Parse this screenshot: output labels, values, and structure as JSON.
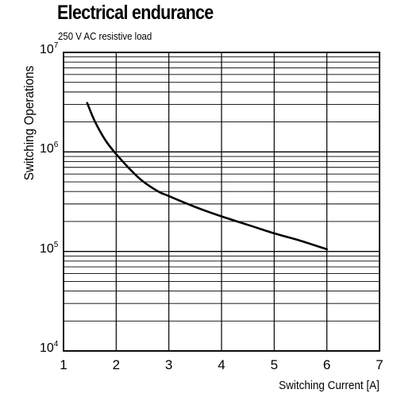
{
  "chart_data": {
    "type": "line",
    "title": "Electrical endurance",
    "subtitle": "250 V AC resistive load",
    "xlabel": "Switching Current [A]",
    "ylabel": "Switching Operations",
    "xlim": [
      1,
      7
    ],
    "ylim": [
      10000,
      10000000
    ],
    "yscale": "log",
    "grid": true,
    "x_ticks": [
      "1",
      "2",
      "3",
      "4",
      "5",
      "6",
      "7"
    ],
    "y_ticks": [
      {
        "base": "10",
        "exp": "4",
        "value": 10000
      },
      {
        "base": "10",
        "exp": "5",
        "value": 100000
      },
      {
        "base": "10",
        "exp": "6",
        "value": 1000000
      },
      {
        "base": "10",
        "exp": "7",
        "value": 10000000
      }
    ],
    "series": [
      {
        "color": "#000000",
        "x": [
          1.45,
          1.6,
          1.8,
          2.0,
          2.25,
          2.5,
          2.8,
          3.0,
          3.5,
          4.0,
          4.5,
          5.0,
          5.5,
          6.0
        ],
        "y": [
          3100000,
          2000000,
          1300000,
          950000,
          680000,
          510000,
          400000,
          360000,
          280000,
          225000,
          185000,
          152000,
          128000,
          105000
        ]
      }
    ]
  }
}
